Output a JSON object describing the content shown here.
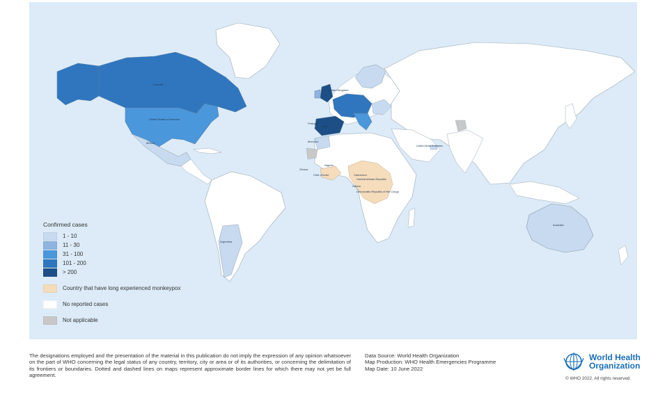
{
  "legend": {
    "title": "Confirmed cases",
    "items": [
      {
        "label": "1 - 10",
        "color": "#c7daf0"
      },
      {
        "label": "11 - 30",
        "color": "#8fb4e0"
      },
      {
        "label": "31 - 100",
        "color": "#4a97dc"
      },
      {
        "label": "101 - 200",
        "color": "#2f76bf"
      },
      {
        "label": "> 200",
        "color": "#1d4f86"
      }
    ],
    "endemic": {
      "label": "Country that have long experienced monkeypox",
      "color": "#f5dcbb"
    },
    "none": {
      "label": "No reported cases",
      "color": "#ffffff"
    },
    "na": {
      "label": "Not applicable",
      "color": "#c8c8c8"
    }
  },
  "colors": {
    "ocean": "#dcebf7",
    "land": "#ffffff",
    "border": "#8a9aa8"
  },
  "country_labels": {
    "canada": "Canada",
    "usa": "United States of America",
    "mexico": "Mexico",
    "argentina": "Argentina",
    "australia": "Australia",
    "uae": "United Arab Emirates",
    "nigeria": "Nigeria",
    "ghana": "Ghana",
    "cameroon": "Cameroon",
    "car": "Central African Republic",
    "gabon": "Gabon",
    "drc": "Democratic Republic of the Congo",
    "cote": "Côte d'Ivoire",
    "uk": "United Kingdom",
    "portugal": "Portugal",
    "spain": "Spain",
    "morocco": "Morocco"
  },
  "footer": {
    "disclaimer": "The designations employed and the presentation of the material in this publication do not imply the expression of any opinion whatsoever on the part of WHO concerning the legal status of any country, territory, city or area or of its authorities, or concerning the delimitation of its frontiers or boundaries. Dotted and dashed lines on maps represent approximate border lines for which there may not yet be full agreement.",
    "source_lines": [
      "Data Source: World Health Organization",
      "Map Production: WHO Health Emergencies Programme",
      "Map Date: 10 June 2022"
    ],
    "org_line1": "World Health",
    "org_line2": "Organization",
    "copyright": "© WHO 2022. All rights reserved."
  }
}
